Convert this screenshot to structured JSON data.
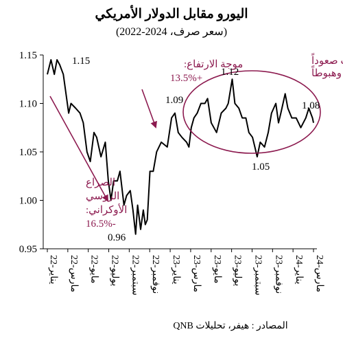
{
  "chart_data": {
    "type": "line",
    "title": "اليورو مقابل الدولار الأمريكي",
    "subtitle": "(سعر صرف، 2024-2022)",
    "source": "المصادر : هيفر، تحليلات QNB",
    "ylim": [
      0.95,
      1.15
    ],
    "y_ticks": [
      "1.15",
      "1.10",
      "1.05",
      "1.00",
      "0.95"
    ],
    "x_ticks": [
      "يناير-22",
      "مارس-22",
      "مايو-22",
      "يوليو-22",
      "سبتمبر-22",
      "نوفمبر-22",
      "يناير-23",
      "مارس-23",
      "مايو-23",
      "يوليو-23",
      "سبتمبر-23",
      "نوفمبر-23",
      "يناير-24",
      "مارس-24"
    ],
    "grid": false,
    "line_color": "#000000",
    "annotation_color": "#8c1a4f",
    "series": [
      {
        "x": [
          "2022-01-03",
          "2022-01-14",
          "2022-01-24",
          "2022-02-02",
          "2022-02-10",
          "2022-02-21",
          "2022-03-07",
          "2022-03-14",
          "2022-03-28",
          "2022-04-11",
          "2022-04-21",
          "2022-05-02",
          "2022-05-12",
          "2022-05-23",
          "2022-06-01",
          "2022-06-14",
          "2022-06-27",
          "2022-07-06",
          "2022-07-14",
          "2022-07-22",
          "2022-08-03",
          "2022-08-11",
          "2022-08-23",
          "2022-09-01",
          "2022-09-12",
          "2022-09-20",
          "2022-09-28",
          "2022-10-04",
          "2022-10-13",
          "2022-10-21",
          "2022-10-27",
          "2022-11-03",
          "2022-11-11",
          "2022-11-21",
          "2022-12-01",
          "2022-12-15",
          "2023-01-03",
          "2023-01-16",
          "2023-01-26",
          "2023-02-06",
          "2023-02-17",
          "2023-03-01",
          "2023-03-08",
          "2023-03-15",
          "2023-03-23",
          "2023-04-03",
          "2023-04-14",
          "2023-04-26",
          "2023-05-04",
          "2023-05-15",
          "2023-05-31",
          "2023-06-15",
          "2023-06-29",
          "2023-07-06",
          "2023-07-18",
          "2023-07-26",
          "2023-08-08",
          "2023-08-18",
          "2023-08-29",
          "2023-09-08",
          "2023-09-19",
          "2023-09-26",
          "2023-10-03",
          "2023-10-12",
          "2023-10-25",
          "2023-11-06",
          "2023-11-16",
          "2023-11-29",
          "2023-12-07",
          "2023-12-14",
          "2023-12-27",
          "2024-01-05",
          "2024-01-17",
          "2024-01-30",
          "2024-02-14",
          "2024-02-29",
          "2024-03-08",
          "2024-03-19",
          "2024-03-22"
        ],
        "values": [
          1.13,
          1.145,
          1.13,
          1.145,
          1.14,
          1.13,
          1.09,
          1.1,
          1.095,
          1.09,
          1.08,
          1.05,
          1.04,
          1.07,
          1.065,
          1.045,
          1.06,
          1.02,
          1.0,
          1.02,
          1.02,
          1.03,
          0.995,
          1.005,
          1.01,
          0.99,
          0.965,
          0.995,
          0.97,
          0.99,
          0.975,
          0.98,
          1.03,
          1.03,
          1.05,
          1.06,
          1.055,
          1.085,
          1.09,
          1.07,
          1.065,
          1.06,
          1.055,
          1.075,
          1.085,
          1.09,
          1.1,
          1.1,
          1.105,
          1.08,
          1.07,
          1.09,
          1.095,
          1.1,
          1.125,
          1.1,
          1.095,
          1.085,
          1.085,
          1.07,
          1.065,
          1.055,
          1.045,
          1.06,
          1.055,
          1.07,
          1.09,
          1.1,
          1.08,
          1.09,
          1.11,
          1.095,
          1.085,
          1.085,
          1.075,
          1.085,
          1.095,
          1.085,
          1.08
        ]
      }
    ],
    "annotations": {
      "peak_start": "1.15",
      "trough": "0.96",
      "recovery": "1.09",
      "peak_mid": "1.12",
      "low_later": "1.05",
      "last": "1.08",
      "war_text": [
        "الصراع",
        "الروسي",
        "الأوكراني:",
        "-16.5%"
      ],
      "rise_text": [
        "موجة الارتفاع:",
        "+13.5%"
      ],
      "swing_text": [
        "تقلبات صعوداً",
        "وهبوطاً"
      ]
    }
  }
}
